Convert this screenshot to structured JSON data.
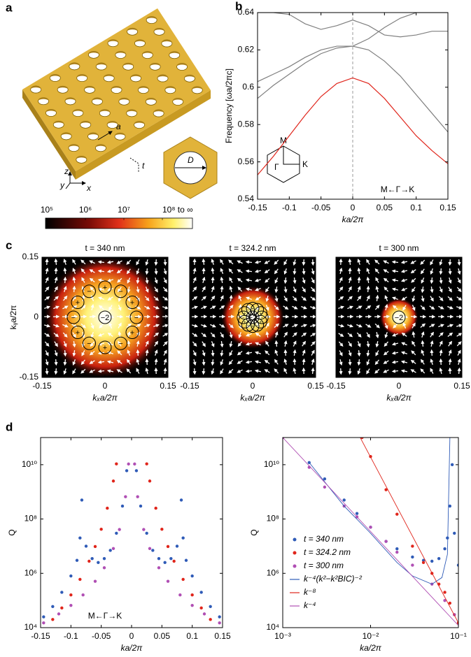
{
  "panel_labels": [
    "a",
    "b",
    "c",
    "d"
  ],
  "schematic": {
    "lattice": "a",
    "thickness": "t",
    "diameter": "D",
    "axes": [
      "z",
      "y",
      "x"
    ]
  },
  "chart_data": [
    {
      "type": "colorbar",
      "scale": "log",
      "lim": [
        100000,
        100000000
      ],
      "ticks": [
        {
          "value": 100000,
          "label": "10⁵"
        },
        {
          "value": 1000000,
          "label": "10⁶"
        },
        {
          "value": 10000000,
          "label": "10⁷"
        },
        {
          "value": 100000000,
          "label": "10⁸ to ∞"
        }
      ]
    },
    {
      "type": "line",
      "xlabel": "ka/2π",
      "ylabel": "Frequency [ωa/2πc]",
      "x": [
        -0.15,
        -0.125,
        -0.1,
        -0.075,
        -0.05,
        -0.025,
        0,
        0.025,
        0.05,
        0.075,
        0.1,
        0.125,
        0.15
      ],
      "series": [
        {
          "color": "#e0251b",
          "values": [
            0.553,
            0.563,
            0.574,
            0.585,
            0.595,
            0.602,
            0.605,
            0.602,
            0.594,
            0.584,
            0.574,
            0.566,
            0.559
          ]
        },
        {
          "color": "#7f7f7f",
          "values": [
            0.594,
            0.601,
            0.607,
            0.613,
            0.618,
            0.621,
            0.622,
            0.62,
            0.614,
            0.606,
            0.596,
            0.586,
            0.576
          ]
        },
        {
          "color": "#7f7f7f",
          "values": [
            0.603,
            0.607,
            0.611,
            0.616,
            0.62,
            0.622,
            0.622,
            0.626,
            0.632,
            0.637,
            0.64,
            0.64,
            0.64
          ]
        },
        {
          "color": "#7f7f7f",
          "values": [
            0.64,
            0.64,
            0.639,
            0.634,
            0.631,
            0.633,
            0.636,
            0.633,
            0.628,
            0.627,
            0.628,
            0.63,
            0.63
          ]
        }
      ],
      "xlim": [
        -0.15,
        0.15
      ],
      "ylim": [
        0.54,
        0.64
      ],
      "xticks": [
        -0.15,
        -0.1,
        -0.05,
        0,
        0.05,
        0.1,
        0.15
      ],
      "yticks": [
        0.54,
        0.56,
        0.58,
        0.6,
        0.62,
        0.64
      ],
      "vline": 0,
      "inset_labels": [
        "M",
        "Γ",
        "K"
      ],
      "annotation": "M←Γ→K"
    },
    {
      "type": "vector_field",
      "title": "t = 340 nm",
      "xlabel": "kₓa/2π",
      "ylabel": "kᵧa/2π",
      "xlim": [
        -0.15,
        0.15
      ],
      "ylim": [
        -0.15,
        0.15
      ],
      "xticks": [
        -0.15,
        0,
        0.15
      ],
      "yticks": [
        -0.15,
        0,
        0.15
      ],
      "charges": [
        {
          "x": 0,
          "y": 0,
          "label": "−2"
        },
        {
          "x": 0.075,
          "y": 0,
          "label": "−"
        },
        {
          "x": 0.065,
          "y": 0.0375,
          "label": "+"
        },
        {
          "x": 0.0375,
          "y": 0.065,
          "label": "−"
        },
        {
          "x": 0,
          "y": 0.075,
          "label": "+"
        },
        {
          "x": -0.0375,
          "y": 0.065,
          "label": "−"
        },
        {
          "x": -0.065,
          "y": 0.0375,
          "label": "+"
        },
        {
          "x": -0.075,
          "y": 0,
          "label": "−"
        },
        {
          "x": -0.065,
          "y": -0.0375,
          "label": "+"
        },
        {
          "x": -0.0375,
          "y": -0.065,
          "label": "−"
        },
        {
          "x": 0,
          "y": -0.075,
          "label": "+"
        },
        {
          "x": 0.0375,
          "y": -0.065,
          "label": "−"
        },
        {
          "x": 0.065,
          "y": -0.0375,
          "label": "+"
        }
      ]
    },
    {
      "type": "vector_field",
      "title": "t = 324.2 nm",
      "xlabel": "kₓa/2π",
      "xlim": [
        -0.15,
        0.15
      ],
      "ylim": [
        -0.15,
        0.15
      ],
      "xticks": [
        -0.15,
        0,
        0.15
      ],
      "charges": [
        {
          "x": 0,
          "y": 0,
          "label": "−2"
        },
        {
          "x": 0.022,
          "y": 0,
          "label": "−"
        },
        {
          "x": 0.019,
          "y": 0.011,
          "label": "+"
        },
        {
          "x": 0.011,
          "y": 0.019,
          "label": "−"
        },
        {
          "x": 0,
          "y": 0.022,
          "label": "+"
        },
        {
          "x": -0.011,
          "y": 0.019,
          "label": "−"
        },
        {
          "x": -0.019,
          "y": 0.011,
          "label": "+"
        },
        {
          "x": -0.022,
          "y": 0,
          "label": "−"
        },
        {
          "x": -0.019,
          "y": -0.011,
          "label": "+"
        },
        {
          "x": -0.011,
          "y": -0.019,
          "label": "−"
        },
        {
          "x": 0,
          "y": -0.022,
          "label": "+"
        },
        {
          "x": 0.011,
          "y": -0.019,
          "label": "−"
        },
        {
          "x": 0.019,
          "y": -0.011,
          "label": "+"
        }
      ]
    },
    {
      "type": "vector_field",
      "title": "t = 300 nm",
      "xlabel": "kₓa/2π",
      "xlim": [
        -0.15,
        0.15
      ],
      "ylim": [
        -0.15,
        0.15
      ],
      "xticks": [
        -0.15,
        0,
        0.15
      ],
      "charges": [
        {
          "x": 0,
          "y": 0,
          "label": "−2"
        }
      ]
    },
    {
      "type": "scatter",
      "xlabel": "ka/2π",
      "ylabel": "Q",
      "log_y": true,
      "annotation": "M←Γ→K",
      "xlim": [
        -0.15,
        0.15
      ],
      "ylim": [
        10000,
        100000000000.0
      ],
      "xticks": [
        -0.15,
        -0.1,
        -0.05,
        0,
        0.05,
        0.1,
        0.15
      ],
      "yticks": [
        {
          "value": 10000,
          "label": "10⁴"
        },
        {
          "value": 1000000,
          "label": "10⁶"
        },
        {
          "value": 100000000,
          "label": "10⁸"
        },
        {
          "value": 10000000000,
          "label": "10¹⁰"
        }
      ],
      "series": [
        {
          "color": "#2f5bb7",
          "mode": "markers",
          "x": [
            -0.145,
            -0.13,
            -0.115,
            -0.1,
            -0.09,
            -0.085,
            -0.082,
            -0.075,
            -0.065,
            -0.055,
            -0.045,
            -0.035,
            -0.025,
            -0.015,
            -0.008,
            0.008,
            0.015,
            0.025,
            0.035,
            0.045,
            0.055,
            0.065,
            0.075,
            0.082,
            0.085,
            0.09,
            0.1,
            0.115,
            0.13,
            0.145
          ],
          "values": [
            25000,
            60000,
            200000,
            800000,
            3000000,
            20000000,
            500000000,
            10000000,
            3500000,
            2500000,
            3500000,
            7000000,
            30000000,
            300000000,
            6000000000,
            6000000000,
            300000000,
            30000000,
            7000000,
            3500000,
            2500000,
            3500000,
            10000000,
            500000000,
            20000000,
            3000000,
            800000,
            200000,
            60000,
            25000
          ]
        },
        {
          "color": "#e0251b",
          "mode": "markers",
          "x": [
            -0.13,
            -0.115,
            -0.1,
            -0.085,
            -0.07,
            -0.06,
            -0.05,
            -0.04,
            -0.03,
            -0.025,
            0.025,
            0.03,
            0.04,
            0.05,
            0.06,
            0.07,
            0.085,
            0.1,
            0.115,
            0.13
          ],
          "values": [
            20000,
            53000,
            160000,
            600000,
            2800000,
            9700000,
            42000000,
            250000000,
            2500000000,
            10700000000,
            10700000000,
            2500000000,
            250000000,
            42000000,
            9700000,
            2800000,
            600000,
            160000,
            53000,
            20000
          ]
        },
        {
          "color": "#b04fb4",
          "mode": "markers",
          "x": [
            -0.145,
            -0.12,
            -0.1,
            -0.08,
            -0.06,
            -0.045,
            -0.03,
            -0.02,
            -0.01,
            -0.005,
            0.005,
            0.01,
            0.02,
            0.03,
            0.045,
            0.06,
            0.08,
            0.1,
            0.12,
            0.145
          ],
          "values": [
            15000,
            32000,
            66000,
            160000,
            510000,
            1600000,
            8200000,
            41000000,
            660000000,
            10600000000,
            10600000000,
            660000000,
            41000000,
            8200000,
            1600000,
            510000,
            160000,
            66000,
            32000,
            15000
          ]
        }
      ]
    },
    {
      "type": "scatter",
      "xlabel": "ka/2π",
      "ylabel": "Q",
      "log_x": true,
      "log_y": true,
      "legend": "center left",
      "xlim": [
        0.001,
        0.1
      ],
      "ylim": [
        10000,
        100000000000.0
      ],
      "xticks": [
        {
          "value": 0.001,
          "label": "10⁻³"
        },
        {
          "value": 0.01,
          "label": "10⁻²"
        },
        {
          "value": 0.1,
          "label": "10⁻¹"
        }
      ],
      "yticks": [
        {
          "value": 10000,
          "label": "10⁴"
        },
        {
          "value": 1000000,
          "label": "10⁶"
        },
        {
          "value": 100000000,
          "label": "10⁸"
        },
        {
          "value": 10000000000,
          "label": "10¹⁰"
        }
      ],
      "series": [
        {
          "name": "t = 340 nm",
          "color": "#2f5bb7",
          "mode": "markers",
          "x": [
            0.002,
            0.003,
            0.005,
            0.007,
            0.01,
            0.015,
            0.02,
            0.03,
            0.04,
            0.05,
            0.06,
            0.07,
            0.075,
            0.08,
            0.085,
            0.09,
            0.1
          ],
          "values": [
            12000000000,
            3000000000,
            500000000,
            160000000,
            50000000,
            15000000,
            8000000,
            4000000,
            3000000,
            2800000,
            3500000,
            8000000,
            20000000,
            300000000,
            10000000000,
            30000000,
            2000000
          ]
        },
        {
          "name": "t = 324.2 nm",
          "color": "#e0251b",
          "mode": "markers",
          "x": [
            0.008,
            0.01,
            0.015,
            0.02,
            0.03,
            0.04,
            0.05,
            0.06,
            0.07,
            0.08,
            0.09,
            0.1
          ],
          "values": [
            100000000000.0,
            20000000000,
            1200000000,
            150000000,
            10000000,
            2500000,
            1000000,
            400000,
            200000,
            80000,
            30000,
            15000
          ]
        },
        {
          "name": "t = 300 nm",
          "color": "#b04fb4",
          "mode": "markers",
          "x": [
            0.001,
            0.002,
            0.003,
            0.005,
            0.007,
            0.01,
            0.015,
            0.02,
            0.03,
            0.05,
            0.07,
            0.09
          ],
          "values": [
            100000000000.0,
            8000000000,
            1500000000,
            300000000,
            120000000,
            50000000,
            15000000,
            6000000,
            2000000,
            400000,
            100000,
            30000
          ]
        },
        {
          "name": "k⁻⁴(k²−k²BIC)⁻²",
          "color": "#2f5bb7",
          "mode": "line",
          "x": [
            0.002,
            0.005,
            0.01,
            0.02,
            0.03,
            0.05,
            0.065,
            0.075,
            0.08
          ],
          "values": [
            12000000000,
            300000000,
            30000000,
            2500000,
            800000,
            400000,
            700000,
            5000000,
            100000000000.0
          ]
        },
        {
          "name": "k⁻⁸",
          "color": "#e0251b",
          "mode": "line",
          "x": [
            0.0075,
            0.1
          ],
          "values": [
            110000000000.0,
            15000
          ]
        },
        {
          "name": "k⁻⁴",
          "color": "#b04fb4",
          "mode": "line",
          "x": [
            0.001,
            0.1
          ],
          "values": [
            100000000000.0,
            12000
          ]
        }
      ]
    }
  ]
}
